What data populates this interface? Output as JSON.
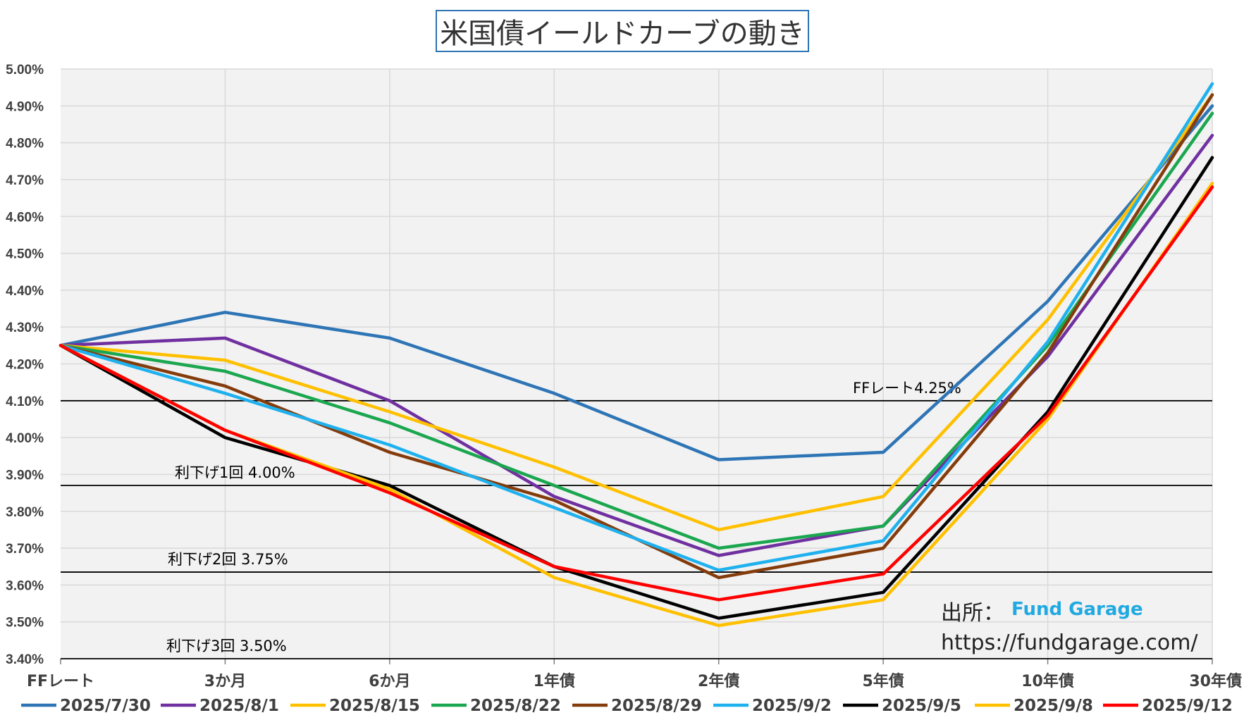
{
  "chart_data": {
    "type": "line",
    "title": "米国債イールドカーブの動き",
    "categories": [
      "FFレート",
      "3か月",
      "6か月",
      "1年債",
      "2年債",
      "5年債",
      "10年債",
      "30年債"
    ],
    "ylim": [
      3.4,
      5.0
    ],
    "yticks": [
      "3.40%",
      "3.50%",
      "3.60%",
      "3.70%",
      "3.80%",
      "3.90%",
      "4.00%",
      "4.10%",
      "4.20%",
      "4.30%",
      "4.40%",
      "4.50%",
      "4.60%",
      "4.70%",
      "4.80%",
      "4.90%",
      "5.00%"
    ],
    "grid": true,
    "legend_position": "bottom",
    "series": [
      {
        "name": "2025/7/30",
        "color": "#2e75b6",
        "values": [
          4.25,
          4.34,
          4.27,
          4.12,
          3.94,
          3.96,
          4.37,
          4.9
        ]
      },
      {
        "name": "2025/8/1",
        "color": "#7030a0",
        "values": [
          4.25,
          4.27,
          4.1,
          3.84,
          3.68,
          3.76,
          4.22,
          4.82
        ]
      },
      {
        "name": "2025/8/15",
        "color": "#ffc000",
        "values": [
          4.25,
          4.21,
          4.07,
          3.92,
          3.75,
          3.84,
          4.32,
          4.93
        ]
      },
      {
        "name": "2025/8/22",
        "color": "#1aa74f",
        "values": [
          4.25,
          4.18,
          4.04,
          3.87,
          3.7,
          3.76,
          4.25,
          4.88
        ]
      },
      {
        "name": "2025/8/29",
        "color": "#843c0c",
        "values": [
          4.25,
          4.14,
          3.96,
          3.83,
          3.62,
          3.7,
          4.23,
          4.93
        ]
      },
      {
        "name": "2025/9/2",
        "color": "#1fb1ee",
        "values": [
          4.25,
          4.12,
          3.98,
          3.81,
          3.64,
          3.72,
          4.26,
          4.96
        ]
      },
      {
        "name": "2025/9/5",
        "color": "#000000",
        "values": [
          4.25,
          4.0,
          3.87,
          3.65,
          3.51,
          3.58,
          4.07,
          4.76
        ]
      },
      {
        "name": "2025/9/8",
        "color": "#ffc000",
        "values": [
          4.25,
          4.02,
          3.86,
          3.62,
          3.49,
          3.56,
          4.05,
          4.69
        ]
      },
      {
        "name": "2025/9/12",
        "color": "#ff0000",
        "values": [
          4.25,
          4.02,
          3.85,
          3.65,
          3.56,
          3.63,
          4.06,
          4.68
        ]
      }
    ],
    "reference_lines": [
      {
        "value": 4.1,
        "label": "FFレート4.25%"
      },
      {
        "value": 3.87,
        "label": "利下げ1回 4.00%"
      },
      {
        "value": 3.635,
        "label": "利下げ2回 3.75%"
      },
      {
        "value": 3.4,
        "label": "利下げ3回 3.50%"
      }
    ]
  },
  "source": {
    "label": "出所：",
    "name": "Fund Garage",
    "url": "https://fundgarage.com/"
  }
}
